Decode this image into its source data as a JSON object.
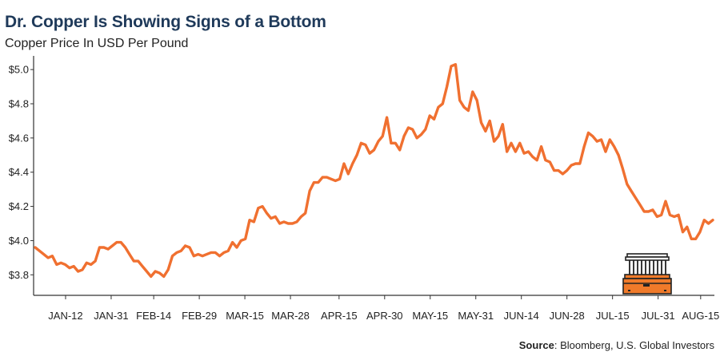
{
  "title": "Dr. Copper Is Showing Signs of a Bottom",
  "subtitle": "Copper Price In USD Per Pound",
  "source": {
    "label": "Source",
    "text": "Bloomberg,  U.S. Global Investors"
  },
  "icon": "bank-building-icon",
  "colors": {
    "line": "#f07030",
    "axis": "#333333",
    "title": "#1f3a5a",
    "icon_fill": "#f07a2a",
    "icon_stroke": "#222222"
  },
  "chart_data": {
    "type": "line",
    "title": "Dr. Copper Is Showing Signs of a Bottom",
    "ylabel": "Copper Price In USD Per Pound",
    "xlabel": "",
    "ylim": [
      3.68,
      5.08
    ],
    "grid": false,
    "y_ticks": [
      {
        "value": 3.8,
        "label": "$3.8"
      },
      {
        "value": 4.0,
        "label": "$4.0"
      },
      {
        "value": 4.2,
        "label": "$4.2"
      },
      {
        "value": 4.4,
        "label": "$4.4"
      },
      {
        "value": 4.6,
        "label": "$4.6"
      },
      {
        "value": 4.8,
        "label": "$4.8"
      },
      {
        "value": 5.0,
        "label": "$5.0"
      }
    ],
    "x_ticks": [
      {
        "index": 10,
        "label": "JAN-12"
      },
      {
        "index": 25,
        "label": "JAN-31"
      },
      {
        "index": 39,
        "label": "FEB-14"
      },
      {
        "index": 54,
        "label": "FEB-29"
      },
      {
        "index": 69,
        "label": "MAR-15"
      },
      {
        "index": 84,
        "label": "MAR-28"
      },
      {
        "index": 100,
        "label": "APR-15"
      },
      {
        "index": 115,
        "label": "APR-30"
      },
      {
        "index": 130,
        "label": "MAY-15"
      },
      {
        "index": 145,
        "label": "MAY-31"
      },
      {
        "index": 160,
        "label": "JUN-14"
      },
      {
        "index": 175,
        "label": "JUN-28"
      },
      {
        "index": 190,
        "label": "JUL-15"
      },
      {
        "index": 205,
        "label": "JUL-31"
      },
      {
        "index": 219,
        "label": "AUG-15"
      }
    ],
    "series": [
      {
        "values": [
          3.96,
          3.94,
          3.92,
          3.9,
          3.91,
          3.86,
          3.87,
          3.86,
          3.84,
          3.85,
          3.82,
          3.83,
          3.87,
          3.86,
          3.88,
          3.96,
          3.96,
          3.95,
          3.97,
          3.99,
          3.99,
          3.96,
          3.92,
          3.88,
          3.88,
          3.85,
          3.82,
          3.79,
          3.82,
          3.81,
          3.79,
          3.83,
          3.91,
          3.93,
          3.94,
          3.97,
          3.96,
          3.91,
          3.92,
          3.91,
          3.92,
          3.93,
          3.93,
          3.91,
          3.93,
          3.94,
          3.99,
          3.96,
          4.0,
          4.01,
          4.12,
          4.11,
          4.19,
          4.2,
          4.16,
          4.13,
          4.14,
          4.1,
          4.11,
          4.1,
          4.1,
          4.11,
          4.14,
          4.16,
          4.29,
          4.34,
          4.34,
          4.37,
          4.37,
          4.36,
          4.35,
          4.36,
          4.45,
          4.39,
          4.45,
          4.5,
          4.57,
          4.56,
          4.51,
          4.53,
          4.58,
          4.61,
          4.72,
          4.57,
          4.57,
          4.53,
          4.61,
          4.66,
          4.65,
          4.6,
          4.62,
          4.65,
          4.73,
          4.71,
          4.78,
          4.8,
          4.9,
          5.02,
          5.03,
          4.82,
          4.78,
          4.76,
          4.87,
          4.82,
          4.69,
          4.64,
          4.7,
          4.58,
          4.61,
          4.68,
          4.52,
          4.57,
          4.52,
          4.57,
          4.51,
          4.52,
          4.49,
          4.47,
          4.55,
          4.47,
          4.46,
          4.41,
          4.41,
          4.39,
          4.41,
          4.44,
          4.45,
          4.45,
          4.55,
          4.63,
          4.61,
          4.58,
          4.59,
          4.52,
          4.59,
          4.55,
          4.5,
          4.42,
          4.33,
          4.29,
          4.25,
          4.21,
          4.17,
          4.17,
          4.18,
          4.14,
          4.15,
          4.23,
          4.15,
          4.14,
          4.15,
          4.05,
          4.08,
          4.01,
          4.01,
          4.05,
          4.12,
          4.1,
          4.12
        ],
        "x_range": [
          0,
          223
        ]
      }
    ]
  }
}
